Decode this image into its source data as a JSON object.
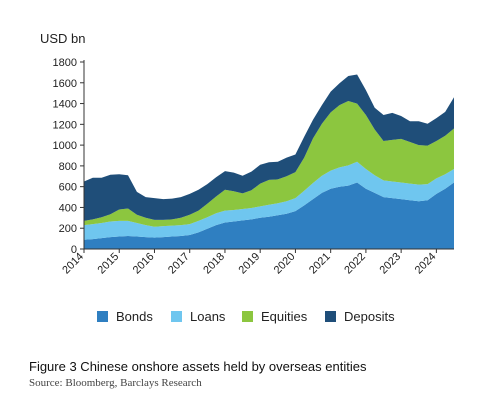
{
  "chart_data": {
    "type": "area",
    "stacked": true,
    "unit_label": "USD bn",
    "x": [
      2014.0,
      2014.25,
      2014.5,
      2014.75,
      2015.0,
      2015.25,
      2015.5,
      2015.75,
      2016.0,
      2016.25,
      2016.5,
      2016.75,
      2017.0,
      2017.25,
      2017.5,
      2017.75,
      2018.0,
      2018.25,
      2018.5,
      2018.75,
      2019.0,
      2019.25,
      2019.5,
      2019.75,
      2020.0,
      2020.25,
      2020.5,
      2020.75,
      2021.0,
      2021.25,
      2021.5,
      2021.75,
      2022.0,
      2022.25,
      2022.5,
      2022.75,
      2023.0,
      2023.25,
      2023.5,
      2023.75,
      2024.0,
      2024.25,
      2024.5
    ],
    "series": [
      {
        "name": "Bonds",
        "color": "#2f7fc1",
        "values": [
          90,
          95,
          105,
          115,
          120,
          125,
          120,
          115,
          110,
          115,
          120,
          125,
          135,
          160,
          195,
          230,
          255,
          265,
          275,
          285,
          300,
          310,
          325,
          340,
          365,
          420,
          480,
          540,
          580,
          600,
          610,
          640,
          580,
          540,
          500,
          490,
          480,
          470,
          460,
          470,
          530,
          580,
          640
        ]
      },
      {
        "name": "Loans",
        "color": "#6fc6ef",
        "values": [
          140,
          145,
          145,
          150,
          150,
          145,
          130,
          115,
          105,
          105,
          105,
          105,
          105,
          110,
          110,
          115,
          115,
          110,
          110,
          110,
          110,
          115,
          115,
          120,
          125,
          140,
          155,
          165,
          175,
          185,
          195,
          200,
          190,
          170,
          160,
          160,
          160,
          160,
          160,
          155,
          150,
          140,
          130
        ]
      },
      {
        "name": "Equities",
        "color": "#8cc63f",
        "values": [
          40,
          45,
          55,
          70,
          110,
          120,
          80,
          70,
          65,
          60,
          60,
          70,
          90,
          100,
          130,
          160,
          200,
          180,
          150,
          170,
          220,
          240,
          230,
          240,
          250,
          320,
          430,
          500,
          560,
          600,
          620,
          560,
          520,
          440,
          380,
          400,
          420,
          400,
          380,
          370,
          360,
          370,
          390
        ]
      },
      {
        "name": "Deposits",
        "color": "#1f4e79",
        "values": [
          380,
          400,
          380,
          380,
          340,
          320,
          220,
          200,
          210,
          200,
          200,
          200,
          200,
          200,
          190,
          185,
          180,
          180,
          170,
          180,
          180,
          170,
          170,
          180,
          170,
          200,
          180,
          180,
          200,
          210,
          240,
          280,
          240,
          210,
          250,
          260,
          220,
          200,
          230,
          210,
          220,
          230,
          300
        ]
      }
    ],
    "x_ticks": [
      "2014",
      "2015",
      "2016",
      "2017",
      "2018",
      "2019",
      "2020",
      "2021",
      "2022",
      "2023",
      "2024"
    ],
    "y_ticks": [
      "0",
      "200",
      "400",
      "600",
      "800",
      "1000",
      "1200",
      "1400",
      "1600",
      "1800"
    ],
    "xlim": [
      2014.0,
      2024.5
    ],
    "ylim": [
      0,
      1800
    ],
    "grid": false,
    "legend_position": "bottom",
    "caption": "Figure 3 Chinese onshore assets held by overseas entities",
    "source": "Source: Bloomberg, Barclays Research"
  }
}
